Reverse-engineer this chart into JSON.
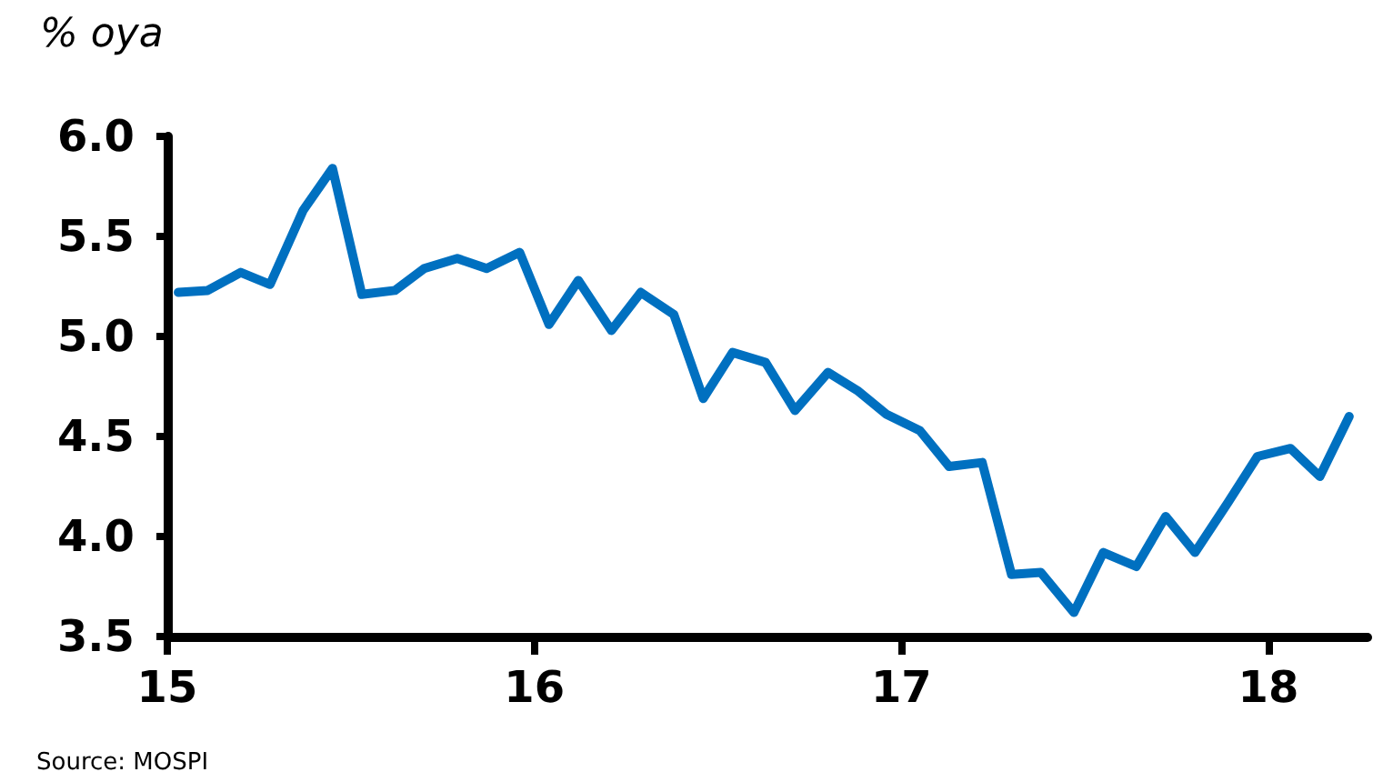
{
  "chart_data": {
    "type": "line",
    "ylabel": "% oya",
    "annotations": [
      "Source: MOSPI"
    ],
    "x": [
      15.03,
      15.11,
      15.2,
      15.28,
      15.37,
      15.45,
      15.53,
      15.62,
      15.7,
      15.79,
      15.87,
      15.96,
      16.04,
      16.12,
      16.21,
      16.29,
      16.38,
      16.46,
      16.54,
      16.63,
      16.71,
      16.8,
      16.88,
      16.96,
      17.05,
      17.13,
      17.22,
      17.3,
      17.38,
      17.47,
      17.55,
      17.64,
      17.72,
      17.8,
      17.89,
      17.97,
      18.06,
      18.14,
      18.22
    ],
    "series": [
      {
        "color": "#0070c0",
        "values": [
          5.22,
          5.23,
          5.32,
          5.26,
          5.63,
          5.84,
          5.21,
          5.23,
          5.34,
          5.39,
          5.34,
          5.42,
          5.06,
          5.28,
          5.03,
          5.22,
          5.11,
          4.69,
          4.92,
          4.87,
          4.63,
          4.82,
          4.73,
          4.61,
          4.53,
          4.35,
          4.37,
          3.81,
          3.82,
          3.62,
          3.92,
          3.85,
          4.1,
          3.92,
          4.17,
          4.4,
          4.44,
          4.3,
          4.6
        ]
      }
    ],
    "xlim": [
      15,
      18.27
    ],
    "xticks": [
      15,
      16,
      17,
      18
    ],
    "ylim": [
      3.5,
      6
    ],
    "yticks": [
      3.5,
      {
        "value": 4,
        "label": "4.0"
      },
      4.5,
      {
        "value": 5,
        "label": "5.0"
      },
      5.5,
      {
        "value": 6,
        "label": "6.0"
      }
    ],
    "grid": false,
    "marker": "none",
    "line_style": "solid"
  }
}
